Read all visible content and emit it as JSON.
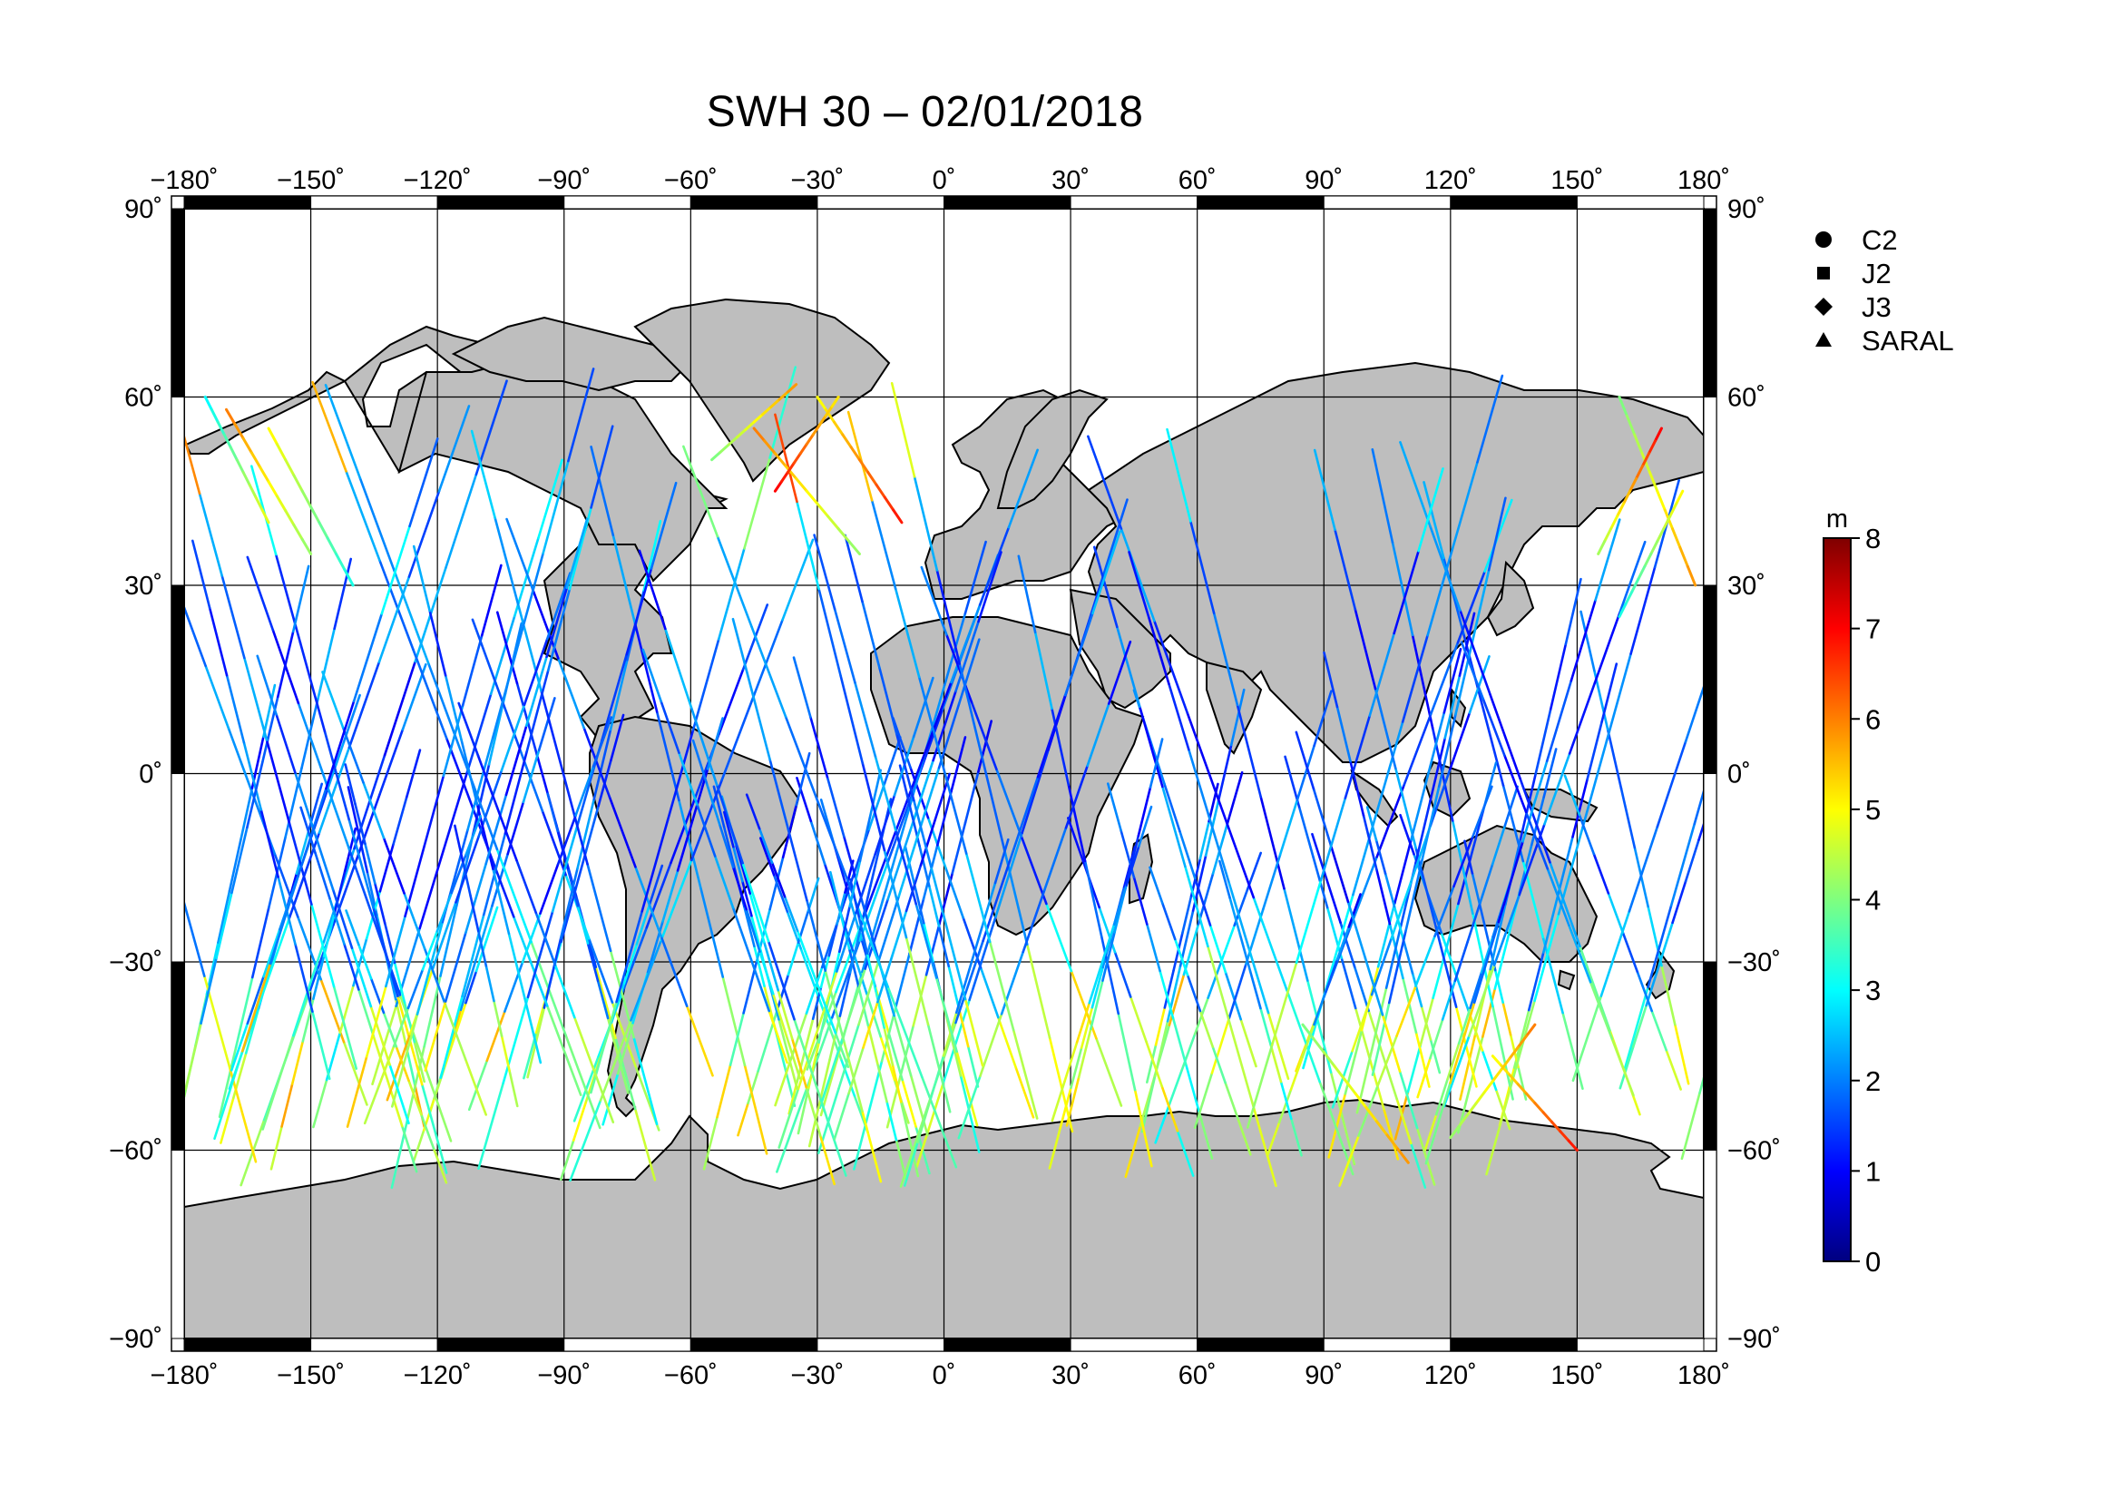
{
  "title": "SWH 30 – 02/01/2018",
  "map": {
    "lon_ticks": [
      "−180˚",
      "−150˚",
      "−120˚",
      "−90˚",
      "−60˚",
      "−30˚",
      "0˚",
      "30˚",
      "60˚",
      "90˚",
      "120˚",
      "150˚",
      "180˚"
    ],
    "lon_values": [
      -180,
      -150,
      -120,
      -90,
      -60,
      -30,
      0,
      30,
      60,
      90,
      120,
      150,
      180
    ],
    "lat_ticks": [
      "90˚",
      "60˚",
      "30˚",
      "0˚",
      "−30˚",
      "−60˚",
      "−90˚"
    ],
    "lat_values": [
      90,
      60,
      30,
      0,
      -30,
      -60,
      -90
    ],
    "land_color": "#bebebe",
    "ocean_color": "#ffffff"
  },
  "legend": {
    "items": [
      {
        "label": "C2",
        "symbol": "circle"
      },
      {
        "label": "J2",
        "symbol": "square"
      },
      {
        "label": "J3",
        "symbol": "diamond"
      },
      {
        "label": "SARAL",
        "symbol": "triangle"
      }
    ]
  },
  "colorbar": {
    "unit": "m",
    "ticks": [
      "0",
      "1",
      "2",
      "3",
      "4",
      "5",
      "6",
      "7",
      "8"
    ],
    "min": 0,
    "max": 8,
    "colors": [
      "#00007f",
      "#0000ff",
      "#007fff",
      "#00ffff",
      "#7fff7f",
      "#ffff00",
      "#ff7f00",
      "#ff0000",
      "#7f0000"
    ]
  },
  "chart_data": {
    "type": "scatter",
    "title": "SWH 30 – 02/01/2018",
    "xlim": [
      -180,
      180
    ],
    "ylim": [
      -90,
      90
    ],
    "grid": true,
    "legend_position": "right",
    "series": [
      {
        "name": "C2"
      },
      {
        "name": "J2"
      },
      {
        "name": "J3"
      },
      {
        "name": "SARAL"
      }
    ],
    "color_scale": {
      "unit": "m",
      "min": 0,
      "max": 8
    },
    "tracks": [
      {
        "x": [
          -175,
          -160
        ],
        "y": [
          60,
          40
        ],
        "swh": [
          3,
          5
        ]
      },
      {
        "x": [
          -170,
          -150
        ],
        "y": [
          58,
          35
        ],
        "swh": [
          6,
          4
        ]
      },
      {
        "x": [
          -160,
          -140
        ],
        "y": [
          55,
          30
        ],
        "swh": [
          5,
          3
        ]
      },
      {
        "x": [
          -30,
          -10
        ],
        "y": [
          60,
          40
        ],
        "swh": [
          5,
          7
        ]
      },
      {
        "x": [
          -45,
          -20
        ],
        "y": [
          55,
          35
        ],
        "swh": [
          6,
          4
        ]
      },
      {
        "x": [
          -40,
          -25
        ],
        "y": [
          45,
          60
        ],
        "swh": [
          7,
          5
        ]
      },
      {
        "x": [
          -55,
          -35
        ],
        "y": [
          50,
          62
        ],
        "swh": [
          4,
          6
        ]
      },
      {
        "x": [
          160,
          178
        ],
        "y": [
          60,
          30
        ],
        "swh": [
          4,
          6
        ]
      },
      {
        "x": [
          170,
          155
        ],
        "y": [
          55,
          35
        ],
        "swh": [
          7,
          4
        ]
      },
      {
        "x": [
          175,
          160
        ],
        "y": [
          45,
          25
        ],
        "swh": [
          5,
          3
        ]
      },
      {
        "x": [
          85,
          110
        ],
        "y": [
          -40,
          -62
        ],
        "swh": [
          4,
          6
        ]
      },
      {
        "x": [
          130,
          150
        ],
        "y": [
          -45,
          -60
        ],
        "swh": [
          5,
          7
        ]
      },
      {
        "x": [
          140,
          120
        ],
        "y": [
          -40,
          -58
        ],
        "swh": [
          6,
          4
        ]
      }
    ]
  }
}
